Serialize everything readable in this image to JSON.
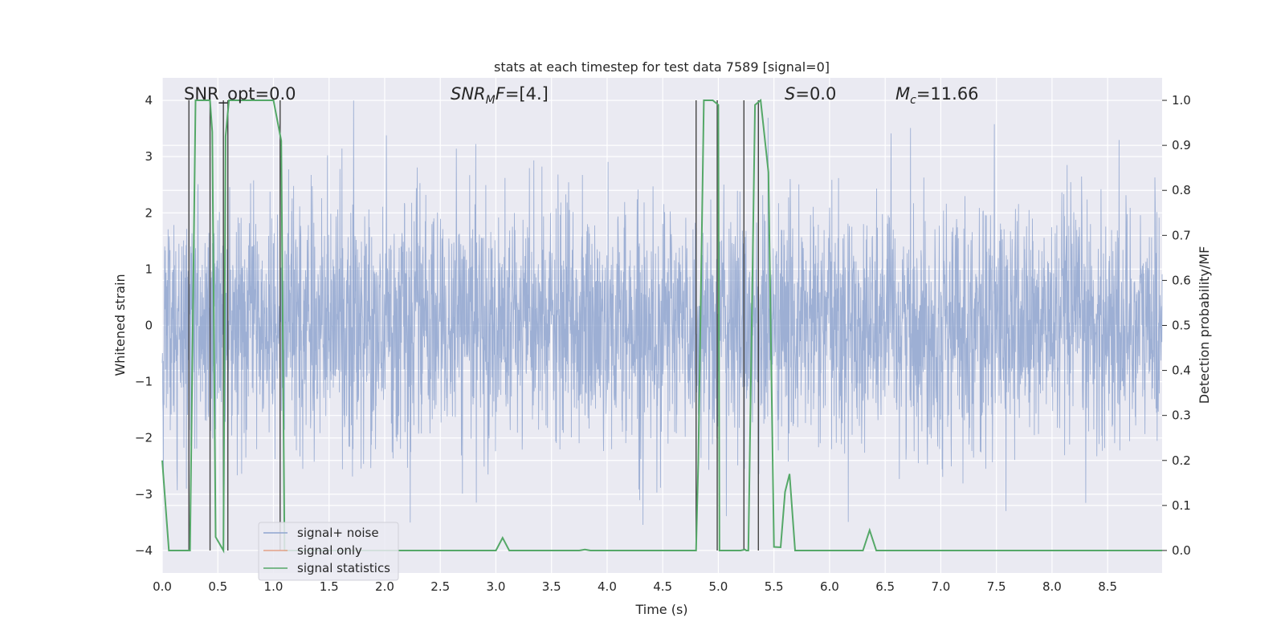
{
  "chart_data": {
    "type": "line",
    "title": "stats at each timestep for test data 7589 [signal=0]",
    "xlabel": "Time (s)",
    "ylabel": "Whitened strain",
    "ylabel_right": "Detection probability/MF",
    "xlim": [
      0.0,
      8.99
    ],
    "ylim": [
      -4.4,
      4.4
    ],
    "ylim_right": [
      -0.05,
      1.05
    ],
    "x_ticks": [
      0.0,
      0.5,
      1.0,
      1.5,
      2.0,
      2.5,
      3.0,
      3.5,
      4.0,
      4.5,
      5.0,
      5.5,
      6.0,
      6.5,
      7.0,
      7.5,
      8.0,
      8.5
    ],
    "x_tick_labels": [
      "0.0",
      "0.5",
      "1.0",
      "1.5",
      "2.0",
      "2.5",
      "3.0",
      "3.5",
      "4.0",
      "4.5",
      "5.0",
      "5.5",
      "6.0",
      "6.5",
      "7.0",
      "7.5",
      "8.0",
      "8.5"
    ],
    "y_ticks": [
      -4,
      -3,
      -2,
      -1,
      0,
      1,
      2,
      3,
      4
    ],
    "y_tick_labels": [
      "−4",
      "−3",
      "−2",
      "−1",
      "0",
      "1",
      "2",
      "3",
      "4"
    ],
    "y_right_ticks": [
      0.0,
      0.1,
      0.2,
      0.3,
      0.4,
      0.5,
      0.6,
      0.7,
      0.8,
      0.9,
      1.0
    ],
    "y_right_tick_labels": [
      "0.0",
      "0.1",
      "0.2",
      "0.3",
      "0.4",
      "0.5",
      "0.6",
      "0.7",
      "0.8",
      "0.9",
      "1.0"
    ],
    "grid": true,
    "legend_position": "lower-left",
    "series": [
      {
        "name": "signal+ noise",
        "color": "#8fa5cf",
        "axis": "left",
        "note": "whitened noise strain, approx. ±1.8 amplitude with peaks up to ±4"
      },
      {
        "name": "signal only",
        "color": "#e3a287",
        "axis": "left",
        "values": []
      },
      {
        "name": "signal statistics",
        "color": "#55a868",
        "axis": "right",
        "x": [
          0.0,
          0.06,
          0.2,
          0.25,
          0.3,
          0.43,
          0.45,
          0.48,
          0.55,
          0.57,
          0.6,
          0.63,
          1.0,
          1.07,
          1.1,
          1.2,
          3.0,
          3.06,
          3.12,
          3.2,
          3.75,
          3.8,
          3.85,
          4.8,
          4.82,
          4.87,
          4.95,
          5.0,
          5.01,
          5.05,
          5.2,
          5.24,
          5.25,
          5.27,
          5.33,
          5.38,
          5.45,
          5.5,
          5.56,
          5.6,
          5.64,
          5.69,
          5.74,
          6.3,
          6.36,
          6.42,
          8.99
        ],
        "y": [
          0.2,
          0.0,
          0.0,
          0.0,
          1.0,
          1.0,
          0.93,
          0.03,
          0.0,
          0.92,
          1.0,
          1.0,
          1.0,
          0.91,
          0.0,
          0.0,
          0.0,
          0.028,
          0.0,
          0.0,
          0.0,
          0.002,
          0.0,
          0.0,
          0.2,
          1.0,
          1.0,
          0.99,
          0.0,
          0.0,
          0.0,
          0.002,
          0.0,
          0.0,
          0.99,
          1.0,
          0.84,
          0.008,
          0.007,
          0.13,
          0.17,
          0.0,
          0.0,
          0.0,
          0.045,
          0.0,
          0.0
        ]
      }
    ],
    "vertical_markers": [
      0.24,
      0.43,
      0.55,
      0.59,
      1.06,
      4.8,
      4.99,
      5.23,
      5.36
    ],
    "annotations": [
      {
        "text": "SNR_opt=0.0",
        "x": 0.2
      },
      {
        "text_italic": "SNR",
        "text_sub": "M",
        "text_italic2": "F",
        "text_tail": "=[4.]",
        "x": 2.6
      },
      {
        "text_italic": "S",
        "text_tail": "=0.0",
        "x": 5.6
      },
      {
        "text_italic": "M",
        "text_sub": "c",
        "text_tail": "=11.66",
        "x": 6.6
      }
    ]
  }
}
